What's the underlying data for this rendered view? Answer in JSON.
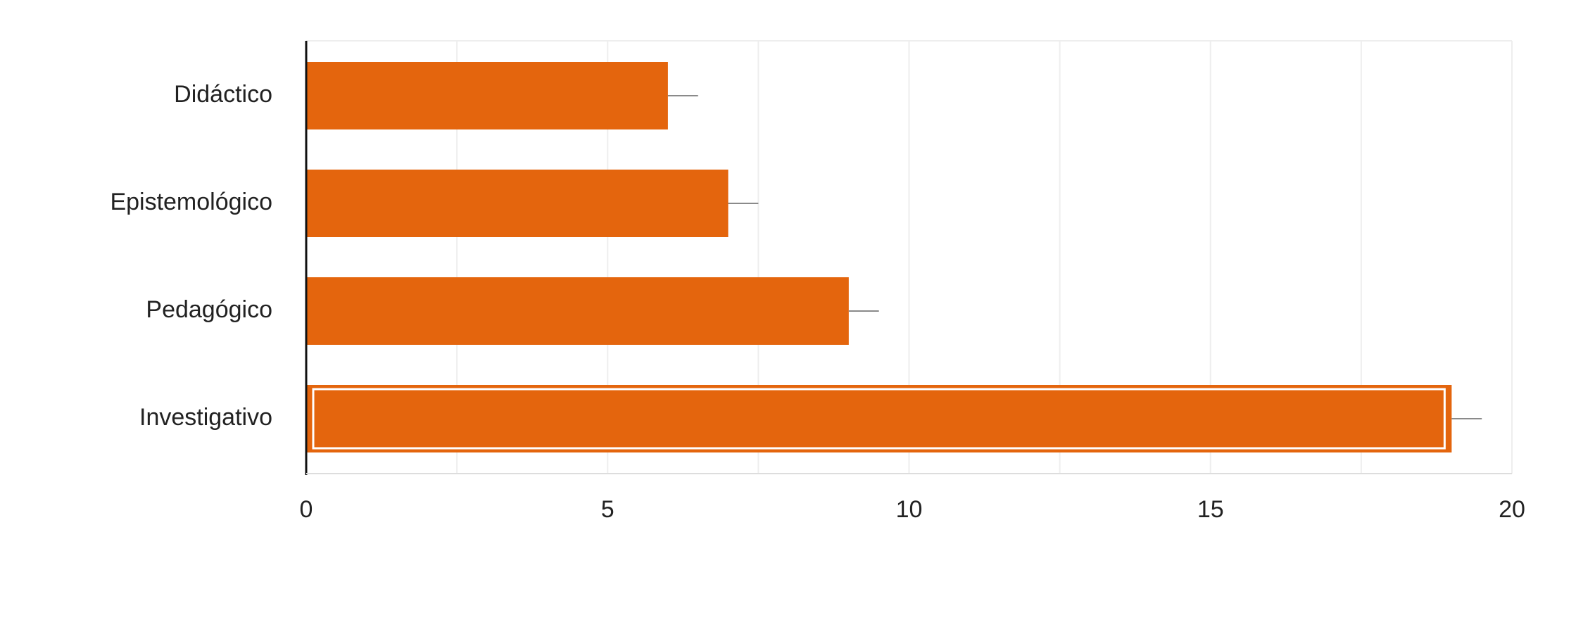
{
  "chart_data": {
    "type": "bar",
    "orientation": "horizontal",
    "categories": [
      "Didáctico",
      "Epistemológico",
      "Pedagógico",
      "Investigativo"
    ],
    "values": [
      6,
      7,
      9,
      19
    ],
    "error_bar_upper": [
      6.5,
      7.5,
      9.5,
      19.5
    ],
    "xlim": [
      0,
      20
    ],
    "x_ticks": [
      "0",
      "5",
      "10",
      "15",
      "20"
    ],
    "title": "",
    "xlabel": "",
    "ylabel": "",
    "grid": true,
    "highlighted_category": "Investigativo",
    "colors": {
      "bar": "#e4650d",
      "axis": "#111111",
      "grid": "#eeeeee",
      "error": "#8a8a8a",
      "highlight_inner": "#ffffff",
      "text": "#222222"
    }
  }
}
